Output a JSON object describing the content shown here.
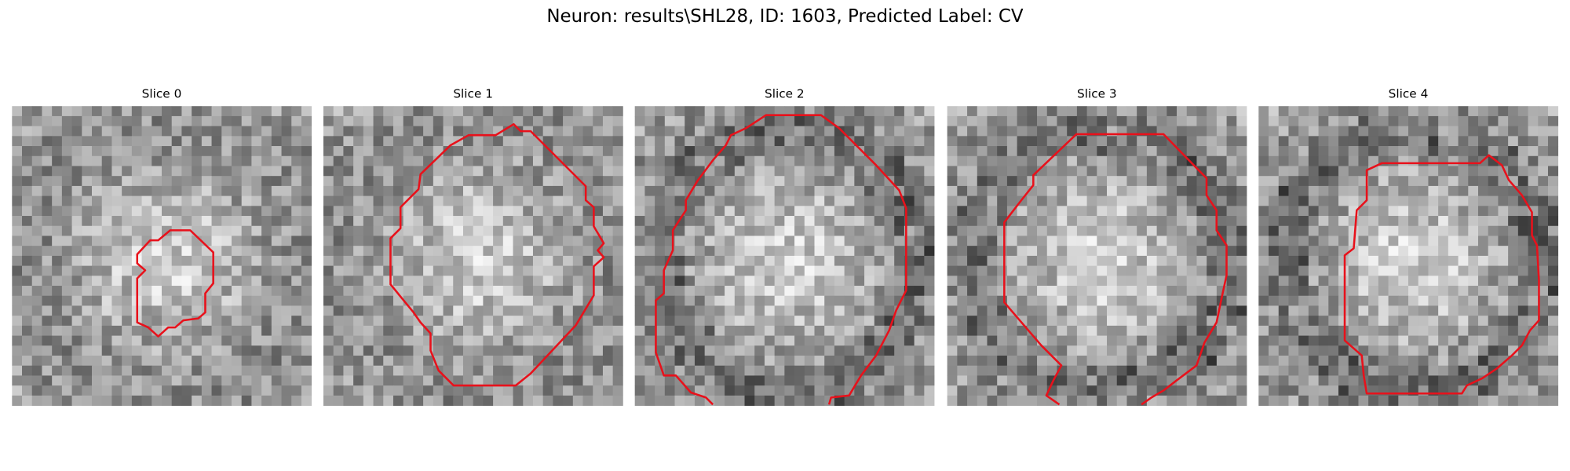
{
  "header": {
    "title": "Neuron: results\\SHL28, ID: 1603, Predicted Label: CV"
  },
  "panels": [
    {
      "title": "Slice 0"
    },
    {
      "title": "Slice 1"
    },
    {
      "title": "Slice 2"
    },
    {
      "title": "Slice 3"
    },
    {
      "title": "Slice 4"
    }
  ]
}
